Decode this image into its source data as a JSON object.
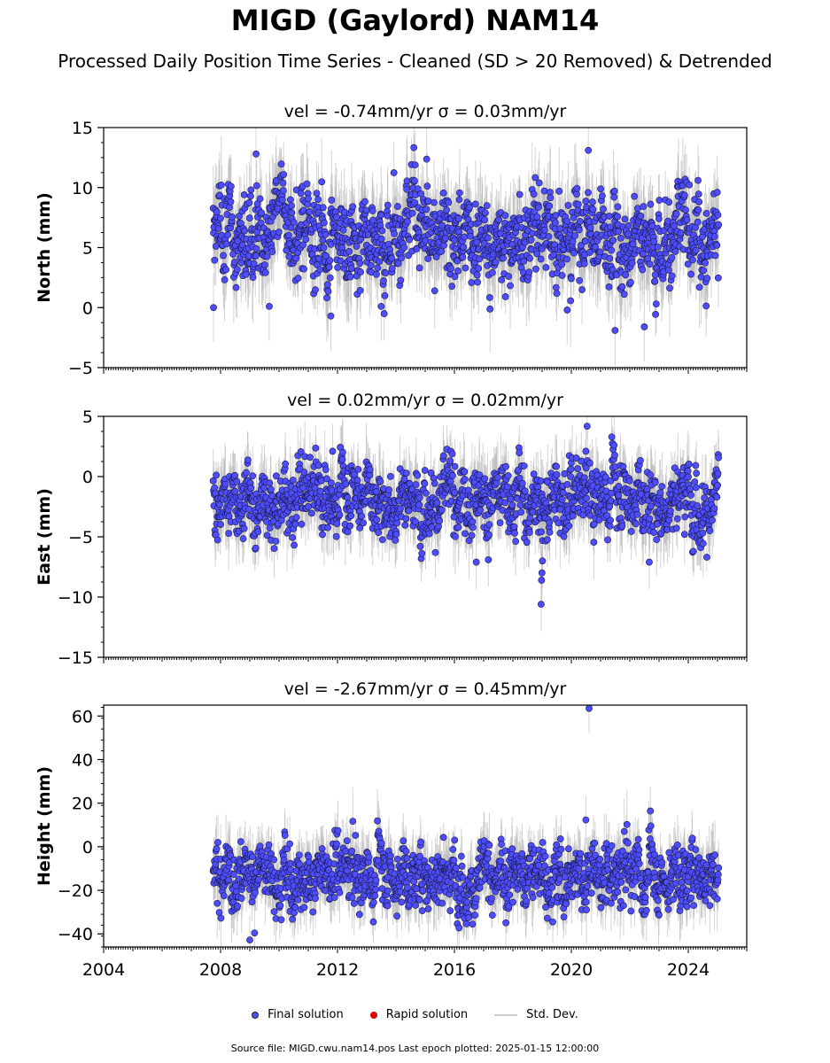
{
  "title": "MIGD (Gaylord) NAM14",
  "subtitle": "Processed Daily Position Time Series - Cleaned (SD > 20 Removed) & Detrended",
  "legend": {
    "final": "Final solution",
    "rapid": "Rapid solution",
    "std": "Std. Dev."
  },
  "footer": "Source file: MIGD.cwu.nam14.pos  Last epoch plotted: 2025-01-15 12:00:00",
  "colors": {
    "final": "#4d4dff",
    "rapid": "#dd0000",
    "std": "#b0b0b0"
  },
  "chart_data": [
    {
      "type": "scatter",
      "title": "vel = -0.74mm/yr   σ = 0.03mm/yr",
      "ylabel": "North (mm)",
      "xlim": [
        "2004-01-01",
        "2026-01-01"
      ],
      "ylim": [
        -5,
        15
      ],
      "yticks": [
        -5,
        0,
        5,
        10,
        15
      ],
      "data_start": "2007-10-01",
      "data_end": "2025-01-15",
      "baseline_mm": 6.0,
      "spread_mm": 1.8,
      "outliers": [
        {
          "x": "2007-10-05",
          "y": 0.0
        },
        {
          "x": "2009-03-20",
          "y": 12.8
        },
        {
          "x": "2009-09-01",
          "y": 0.1
        },
        {
          "x": "2011-10-10",
          "y": -0.7
        },
        {
          "x": "2013-07-01",
          "y": 0.1
        },
        {
          "x": "2019-11-10",
          "y": -0.2
        },
        {
          "x": "2020-08-01",
          "y": 13.1
        },
        {
          "x": "2021-07-01",
          "y": -1.9
        },
        {
          "x": "2022-07-01",
          "y": -1.6
        }
      ]
    },
    {
      "type": "scatter",
      "title": "vel = 0.02mm/yr   σ = 0.02mm/yr",
      "ylabel": "East (mm)",
      "xlim": [
        "2004-01-01",
        "2026-01-01"
      ],
      "ylim": [
        -15,
        5
      ],
      "yticks": [
        -15,
        -10,
        -5,
        0,
        5
      ],
      "data_start": "2007-10-01",
      "data_end": "2025-01-15",
      "baseline_mm": -1.8,
      "spread_mm": 1.4,
      "outliers": [
        {
          "x": "2018-12-20",
          "y": -10.6
        },
        {
          "x": "2018-12-25",
          "y": -8.6
        },
        {
          "x": "2018-12-30",
          "y": -8.0
        },
        {
          "x": "2019-01-05",
          "y": -7.0
        },
        {
          "x": "2017-03-01",
          "y": -6.9
        },
        {
          "x": "2016-10-01",
          "y": -7.1
        },
        {
          "x": "2022-09-01",
          "y": -7.1
        },
        {
          "x": "2011-11-01",
          "y": 2.1
        },
        {
          "x": "2020-07-01",
          "y": 2.1
        }
      ]
    },
    {
      "type": "scatter",
      "title": "vel = -2.67mm/yr   σ = 0.45mm/yr",
      "ylabel": "Height (mm)",
      "xlabel": "",
      "xlim": [
        "2004-01-01",
        "2026-01-01"
      ],
      "ylim": [
        -46,
        65
      ],
      "yticks": [
        -40,
        -20,
        0,
        20,
        40,
        60
      ],
      "xticks": [
        "2004",
        "2008",
        "2012",
        "2016",
        "2020",
        "2024"
      ],
      "data_start": "2007-10-01",
      "data_end": "2025-01-15",
      "baseline_mm": -13.0,
      "spread_mm": 7.0,
      "outliers": [
        {
          "x": "2020-08-10",
          "y": 63.5
        },
        {
          "x": "2022-09-15",
          "y": 16.4
        },
        {
          "x": "2020-07-01",
          "y": 12.3
        },
        {
          "x": "2009-01-01",
          "y": -42.8
        },
        {
          "x": "2009-03-01",
          "y": -39.6
        }
      ]
    }
  ]
}
